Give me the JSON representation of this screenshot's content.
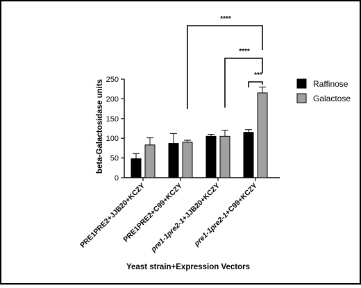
{
  "chart_data": {
    "type": "bar",
    "xlabel": "Yeast strain+Expression Vectors",
    "ylabel": "beta-Galactosidase units",
    "ylim": [
      0,
      250
    ],
    "yticks": [
      0,
      50,
      100,
      150,
      200,
      250
    ],
    "categories": [
      "PRE1PRE2+JJB20+KCZY",
      "PRE1PRE2+C99+KCZY",
      "pre1-1pre2-1+JJB20+KCZY",
      "pre1-1pre2-1+C99+KCZY"
    ],
    "category_italic_prefix": [
      "",
      "",
      "pre1-1pre2-1",
      "pre1-1pre2-1"
    ],
    "series": [
      {
        "name": "Raffinose",
        "color": "#000000",
        "values": [
          48,
          87,
          105,
          115
        ],
        "errors": [
          13,
          25,
          5,
          7
        ]
      },
      {
        "name": "Galactose",
        "color": "#a0a0a0",
        "values": [
          83,
          90,
          105,
          215
        ],
        "errors": [
          18,
          5,
          15,
          15
        ]
      }
    ],
    "legend_position": "right",
    "significance": [
      {
        "label": "****",
        "from": "PRE1PRE2+C99+KCZY Galactose",
        "to": "pre1-1pre2-1+C99+KCZY Galactose"
      },
      {
        "label": "****",
        "from": "pre1-1pre2-1+JJB20+KCZY Galactose",
        "to": "pre1-1pre2-1+C99+KCZY Galactose"
      },
      {
        "label": "***",
        "from": "pre1-1pre2-1+C99+KCZY Raffinose",
        "to": "pre1-1pre2-1+C99+KCZY Galactose"
      }
    ]
  }
}
